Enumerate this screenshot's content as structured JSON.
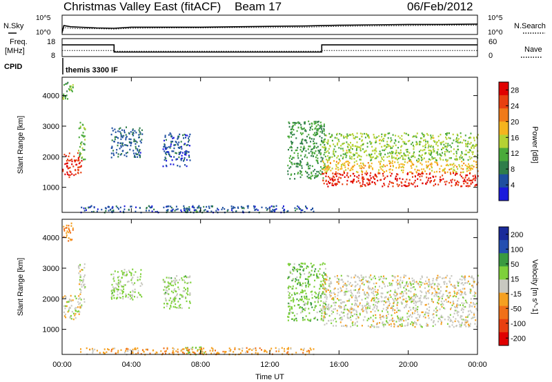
{
  "header": {
    "station": "Christmas Valley East (fitACF)",
    "beam": "Beam 17",
    "date": "06/Feb/2012"
  },
  "colors": {
    "power": [
      "#1a1adc",
      "#1f4fa0",
      "#2f7d4a",
      "#4aaa3a",
      "#b5d233",
      "#f5b41e",
      "#f07a18",
      "#e84010",
      "#e00000"
    ],
    "velocity": [
      "#1a2a9a",
      "#244fb0",
      "#3a9a40",
      "#7ed03a",
      "#c8c8c0",
      "#f5a020",
      "#f07018",
      "#e84010",
      "#e00000"
    ]
  },
  "chart_data": [
    {
      "type": "line",
      "panel": "noise",
      "left_label": "N.Sky",
      "right_label": "N.Search",
      "ylim_left_labels": [
        "10^5",
        "10^0"
      ],
      "ylim_right_labels": [
        "10^5",
        "10^0"
      ],
      "x_hours": [
        0,
        0.1,
        0.5,
        1,
        2,
        3,
        4,
        6,
        8,
        10,
        12,
        14,
        15,
        16,
        18,
        20,
        22,
        24
      ],
      "series": [
        {
          "name": "N.Sky",
          "values": [
            0.5,
            2.3,
            2.0,
            1.9,
            1.7,
            1.6,
            1.9,
            1.9,
            1.9,
            2.0,
            2.1,
            2.2,
            2.3,
            2.4,
            2.5,
            2.6,
            2.6,
            2.7
          ]
        },
        {
          "name": "N.Search",
          "values": [
            0.3,
            1.8,
            1.6,
            1.5,
            1.5,
            1.4,
            1.6,
            1.7,
            1.7,
            1.8,
            1.8,
            1.9,
            2.0,
            2.1,
            2.2,
            2.3,
            2.4,
            2.4
          ]
        }
      ]
    },
    {
      "type": "line",
      "panel": "frequency",
      "left_label": "Freq.",
      "left_unit": "[MHz]",
      "right_label": "Nave",
      "left_ticks": [
        "18",
        "8"
      ],
      "right_ticks": [
        "60",
        "0"
      ],
      "x_hours": [
        0,
        3,
        3,
        15,
        15,
        24
      ],
      "series": [
        {
          "name": "Freq.",
          "values": [
            14.5,
            14.5,
            10.5,
            10.5,
            14.5,
            14.5
          ]
        },
        {
          "name": "Nave",
          "values": [
            20,
            20,
            18,
            18,
            20,
            20
          ]
        }
      ]
    },
    {
      "type": "table",
      "panel": "cpid",
      "label": "CPID",
      "value": "themis 3300 IF"
    },
    {
      "type": "heatmap",
      "panel": "power",
      "ylabel": "Slant Range [km]",
      "yticks": [
        "1000",
        "2000",
        "3000",
        "4000"
      ],
      "ylim": [
        180,
        4600
      ],
      "colorbar_label": "Power [dB]",
      "colorbar_ticks": [
        "4",
        "8",
        "12",
        "16",
        "20",
        "24",
        "28"
      ],
      "colorbar_range": [
        0,
        30
      ],
      "regions": [
        {
          "t0": 0.0,
          "t1": 1.1,
          "r0": 1350,
          "r1": 2150,
          "v": 26
        },
        {
          "t0": 0.9,
          "t1": 1.3,
          "r0": 1900,
          "r1": 3200,
          "v": 12
        },
        {
          "t0": 0.0,
          "t1": 0.6,
          "r0": 3900,
          "r1": 4500,
          "v": 12
        },
        {
          "t0": 2.8,
          "t1": 4.6,
          "r0": 2000,
          "r1": 3000,
          "v": 6
        },
        {
          "t0": 5.8,
          "t1": 7.4,
          "r0": 1700,
          "r1": 2800,
          "v": 5
        },
        {
          "t0": 7.0,
          "t1": 8.2,
          "r0": 200,
          "r1": 450,
          "v": 8
        },
        {
          "t0": 1.0,
          "t1": 14.5,
          "r0": 200,
          "r1": 420,
          "v": 5
        },
        {
          "t0": 13.0,
          "t1": 15.2,
          "r0": 1300,
          "r1": 3200,
          "v": 10
        },
        {
          "t0": 15.0,
          "t1": 24.0,
          "r0": 1900,
          "r1": 2800,
          "v": 14
        },
        {
          "t0": 15.0,
          "t1": 24.0,
          "r0": 1500,
          "r1": 1900,
          "v": 18
        },
        {
          "t0": 15.0,
          "t1": 24.0,
          "r0": 1050,
          "r1": 1500,
          "v": 27
        }
      ]
    },
    {
      "type": "heatmap",
      "panel": "velocity",
      "ylabel": "Slant Range [km]",
      "xlabel": "Time UT",
      "xticks": [
        "00:00",
        "04:00",
        "08:00",
        "12:00",
        "16:00",
        "20:00",
        "00:00"
      ],
      "yticks": [
        "1000",
        "2000",
        "3000",
        "4000"
      ],
      "ylim": [
        180,
        4600
      ],
      "colorbar_label": "Velocity [m s^-1]",
      "colorbar_ticks": [
        "200",
        "100",
        "50",
        "15",
        "-15",
        "-50",
        "-100",
        "-200"
      ],
      "colorbar_range": [
        -250,
        250
      ],
      "regions": [
        {
          "t0": 0.0,
          "t1": 1.1,
          "r0": 1350,
          "r1": 2150,
          "v": 0
        },
        {
          "t0": 0.9,
          "t1": 1.3,
          "r0": 1900,
          "r1": 3200,
          "v": 0
        },
        {
          "t0": 0.0,
          "t1": 0.6,
          "r0": 3900,
          "r1": 4500,
          "v": -80
        },
        {
          "t0": 2.8,
          "t1": 4.6,
          "r0": 2000,
          "r1": 3000,
          "v": 40
        },
        {
          "t0": 5.8,
          "t1": 7.4,
          "r0": 1700,
          "r1": 2800,
          "v": 40
        },
        {
          "t0": 7.0,
          "t1": 8.2,
          "r0": 200,
          "r1": 450,
          "v": 60
        },
        {
          "t0": 1.0,
          "t1": 14.5,
          "r0": 200,
          "r1": 420,
          "v": -60
        },
        {
          "t0": 13.0,
          "t1": 15.2,
          "r0": 1300,
          "r1": 3200,
          "v": 60
        },
        {
          "t0": 15.0,
          "t1": 24.0,
          "r0": 1100,
          "r1": 2800,
          "v": 0
        }
      ]
    }
  ]
}
